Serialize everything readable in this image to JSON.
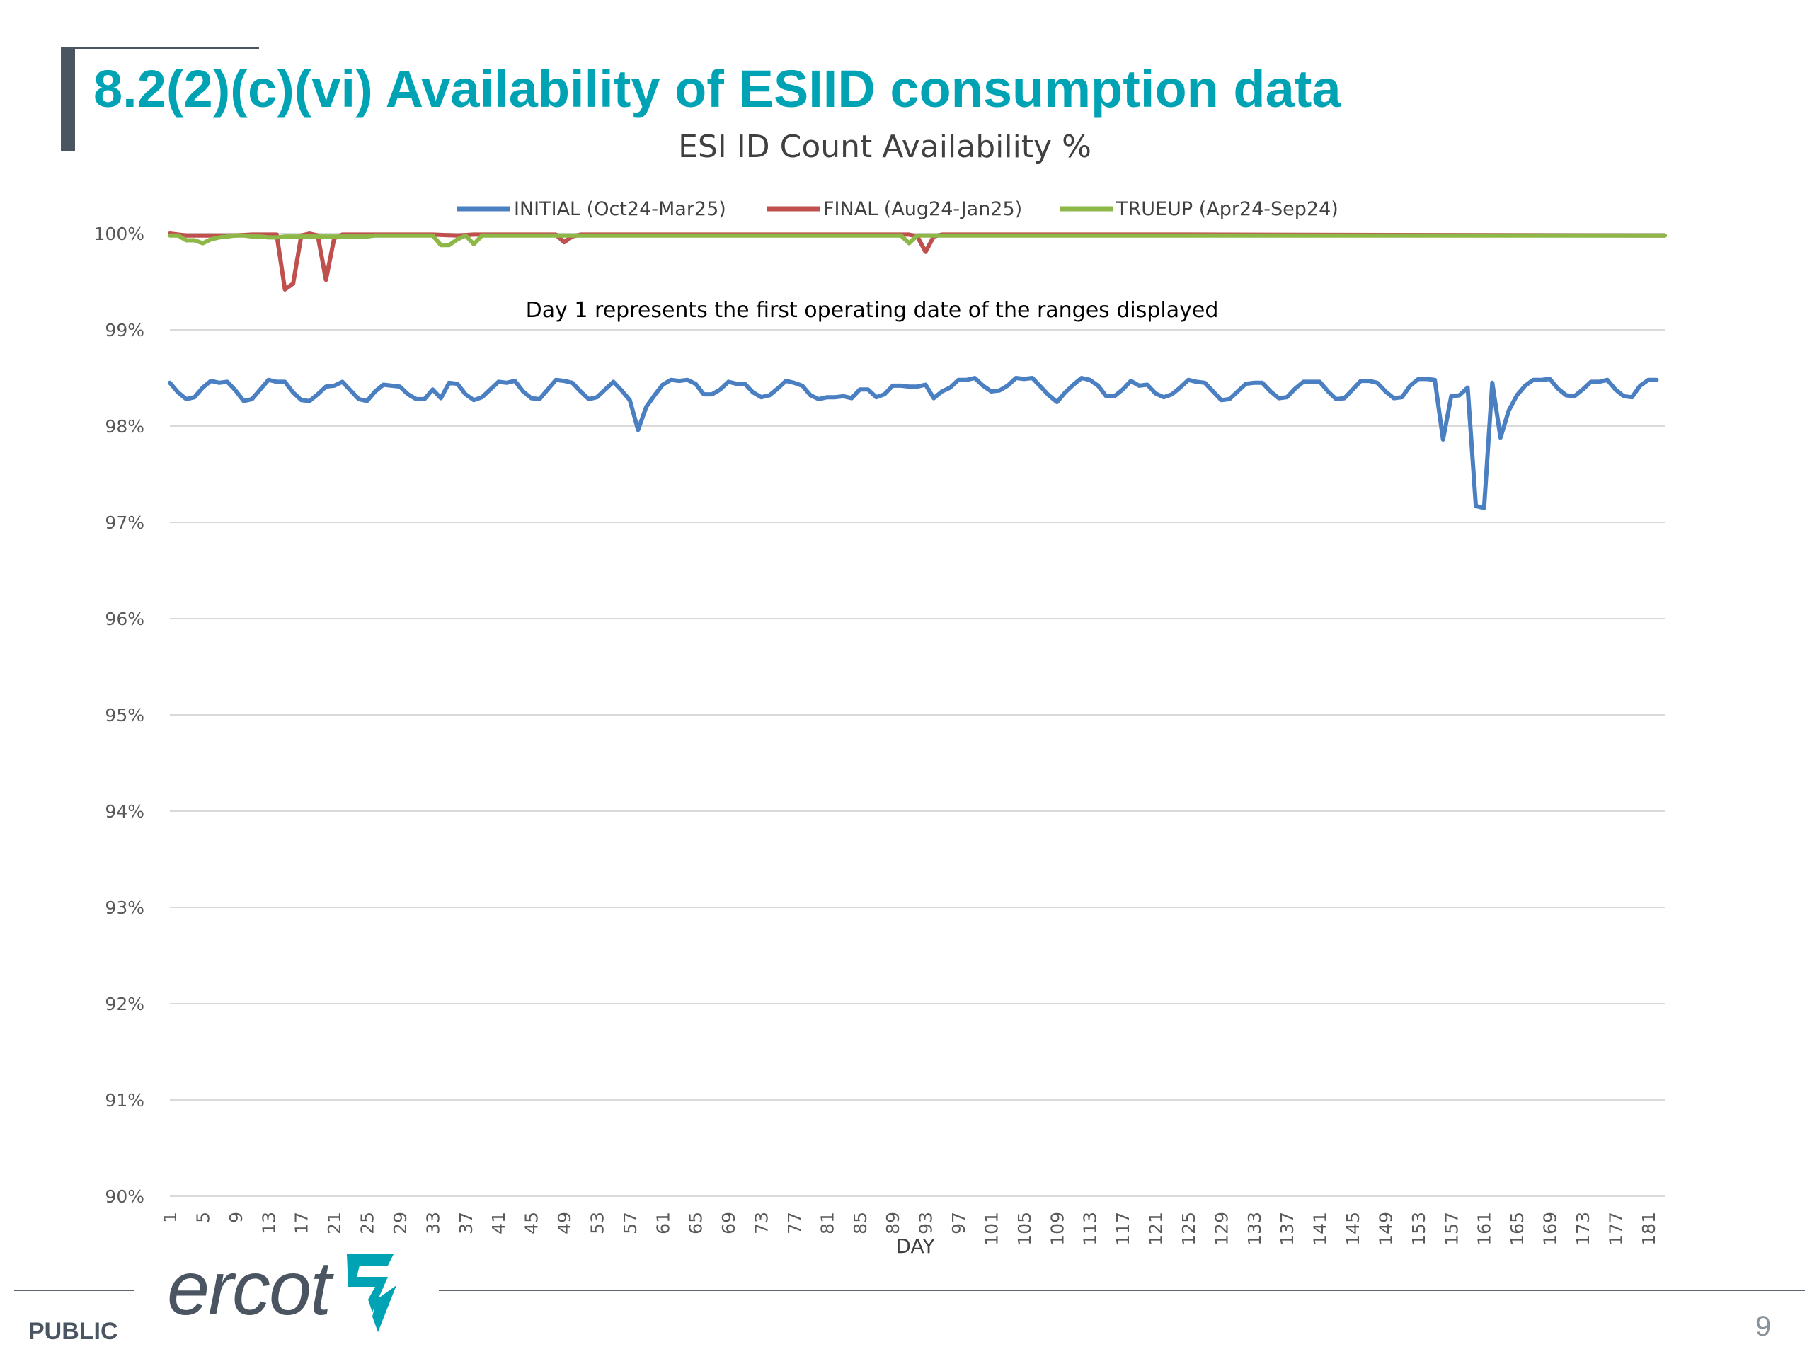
{
  "slide": {
    "title": "8.2(2)(c)(vi) Availability of ESIID consumption data",
    "footer_label": "PUBLIC",
    "page_number": "9",
    "logo_text": "ercot"
  },
  "colors": {
    "title": "#00a3b4",
    "dark_gray": "#4a5561",
    "initial": "#4a7fc1",
    "final": "#c0504d",
    "trueup": "#8db848",
    "gridline": "#d9d9d9"
  },
  "chart_data": {
    "type": "line",
    "title": "ESI ID Count Availability %",
    "annotation": "Day 1 represents the first operating date of the ranges displayed",
    "xlabel": "DAY",
    "ylabel": "",
    "ylim": [
      90,
      100
    ],
    "yticks": [
      "100%",
      "99%",
      "98%",
      "97%",
      "96%",
      "95%",
      "94%",
      "93%",
      "92%",
      "91%",
      "90%"
    ],
    "xticks": [
      "1",
      "5",
      "9",
      "13",
      "17",
      "21",
      "25",
      "29",
      "33",
      "37",
      "41",
      "45",
      "49",
      "53",
      "57",
      "61",
      "65",
      "69",
      "73",
      "77",
      "81",
      "85",
      "89",
      "93",
      "97",
      "101",
      "105",
      "109",
      "113",
      "117",
      "121",
      "125",
      "129",
      "133",
      "137",
      "141",
      "145",
      "149",
      "153",
      "157",
      "161",
      "165",
      "169",
      "173",
      "177",
      "181"
    ],
    "grid": true,
    "legend_position": "top",
    "series": [
      {
        "name": "INITIAL (Oct24-Mar25)",
        "points": [
          [
            1,
            98.45
          ],
          [
            2,
            98.35
          ],
          [
            3,
            98.28
          ],
          [
            4,
            98.3
          ],
          [
            5,
            98.4
          ],
          [
            6,
            98.47
          ],
          [
            7,
            98.45
          ],
          [
            8,
            98.46
          ],
          [
            9,
            98.37
          ],
          [
            10,
            98.26
          ],
          [
            11,
            98.28
          ],
          [
            12,
            98.38
          ],
          [
            13,
            98.48
          ],
          [
            14,
            98.46
          ],
          [
            15,
            98.46
          ],
          [
            16,
            98.35
          ],
          [
            17,
            98.27
          ],
          [
            18,
            98.26
          ],
          [
            19,
            98.33
          ],
          [
            20,
            98.41
          ],
          [
            21,
            98.42
          ],
          [
            22,
            98.46
          ],
          [
            23,
            98.37
          ],
          [
            24,
            98.28
          ],
          [
            25,
            98.26
          ],
          [
            26,
            98.36
          ],
          [
            27,
            98.43
          ],
          [
            28,
            98.42
          ],
          [
            29,
            98.41
          ],
          [
            30,
            98.33
          ],
          [
            31,
            98.28
          ],
          [
            32,
            98.28
          ],
          [
            33,
            98.38
          ],
          [
            34,
            98.29
          ],
          [
            35,
            98.45
          ],
          [
            36,
            98.44
          ],
          [
            37,
            98.33
          ],
          [
            38,
            98.27
          ],
          [
            39,
            98.3
          ],
          [
            40,
            98.38
          ],
          [
            41,
            98.46
          ],
          [
            42,
            98.45
          ],
          [
            43,
            98.47
          ],
          [
            44,
            98.36
          ],
          [
            45,
            98.29
          ],
          [
            46,
            98.28
          ],
          [
            47,
            98.38
          ],
          [
            48,
            98.48
          ],
          [
            49,
            98.47
          ],
          [
            50,
            98.45
          ],
          [
            51,
            98.36
          ],
          [
            52,
            98.28
          ],
          [
            53,
            98.3
          ],
          [
            54,
            98.38
          ],
          [
            55,
            98.46
          ],
          [
            56,
            98.37
          ],
          [
            57,
            98.27
          ],
          [
            58,
            97.96
          ],
          [
            59,
            98.2
          ],
          [
            60,
            98.32
          ],
          [
            61,
            98.43
          ],
          [
            62,
            98.48
          ],
          [
            63,
            98.47
          ],
          [
            64,
            98.48
          ],
          [
            65,
            98.44
          ],
          [
            66,
            98.33
          ],
          [
            67,
            98.33
          ],
          [
            68,
            98.38
          ],
          [
            69,
            98.46
          ],
          [
            70,
            98.44
          ],
          [
            71,
            98.44
          ],
          [
            72,
            98.35
          ],
          [
            73,
            98.3
          ],
          [
            74,
            98.32
          ],
          [
            75,
            98.39
          ],
          [
            76,
            98.47
          ],
          [
            77,
            98.45
          ],
          [
            78,
            98.42
          ],
          [
            79,
            98.32
          ],
          [
            80,
            98.28
          ],
          [
            81,
            98.3
          ],
          [
            82,
            98.3
          ],
          [
            83,
            98.31
          ],
          [
            84,
            98.29
          ],
          [
            85,
            98.38
          ],
          [
            86,
            98.38
          ],
          [
            87,
            98.3
          ],
          [
            88,
            98.33
          ],
          [
            89,
            98.42
          ],
          [
            90,
            98.42
          ],
          [
            91,
            98.41
          ],
          [
            92,
            98.41
          ],
          [
            93,
            98.43
          ],
          [
            94,
            98.29
          ],
          [
            95,
            98.36
          ],
          [
            96,
            98.4
          ],
          [
            97,
            98.48
          ],
          [
            98,
            98.48
          ],
          [
            99,
            98.5
          ],
          [
            100,
            98.42
          ],
          [
            101,
            98.36
          ],
          [
            102,
            98.37
          ],
          [
            103,
            98.42
          ],
          [
            104,
            98.5
          ],
          [
            105,
            98.49
          ],
          [
            106,
            98.5
          ],
          [
            107,
            98.41
          ],
          [
            108,
            98.32
          ],
          [
            109,
            98.25
          ],
          [
            110,
            98.35
          ],
          [
            111,
            98.43
          ],
          [
            112,
            98.5
          ],
          [
            113,
            98.48
          ],
          [
            114,
            98.42
          ],
          [
            115,
            98.31
          ],
          [
            116,
            98.31
          ],
          [
            117,
            98.38
          ],
          [
            118,
            98.47
          ],
          [
            119,
            98.42
          ],
          [
            120,
            98.43
          ],
          [
            121,
            98.34
          ],
          [
            122,
            98.3
          ],
          [
            123,
            98.33
          ],
          [
            124,
            98.4
          ],
          [
            125,
            98.48
          ],
          [
            126,
            98.46
          ],
          [
            127,
            98.45
          ],
          [
            128,
            98.36
          ],
          [
            129,
            98.27
          ],
          [
            130,
            98.28
          ],
          [
            131,
            98.36
          ],
          [
            132,
            98.44
          ],
          [
            133,
            98.45
          ],
          [
            134,
            98.45
          ],
          [
            135,
            98.36
          ],
          [
            136,
            98.29
          ],
          [
            137,
            98.3
          ],
          [
            138,
            98.39
          ],
          [
            139,
            98.46
          ],
          [
            140,
            98.46
          ],
          [
            141,
            98.46
          ],
          [
            142,
            98.36
          ],
          [
            143,
            98.28
          ],
          [
            144,
            98.29
          ],
          [
            145,
            98.38
          ],
          [
            146,
            98.47
          ],
          [
            147,
            98.47
          ],
          [
            148,
            98.45
          ],
          [
            149,
            98.36
          ],
          [
            150,
            98.29
          ],
          [
            151,
            98.3
          ],
          [
            152,
            98.42
          ],
          [
            153,
            98.49
          ],
          [
            154,
            98.49
          ],
          [
            155,
            98.48
          ],
          [
            156,
            97.86
          ],
          [
            157,
            98.31
          ],
          [
            158,
            98.32
          ],
          [
            159,
            98.4
          ],
          [
            160,
            97.17
          ],
          [
            161,
            97.15
          ],
          [
            162,
            98.45
          ],
          [
            163,
            97.88
          ],
          [
            164,
            98.16
          ],
          [
            165,
            98.32
          ],
          [
            166,
            98.42
          ],
          [
            167,
            98.48
          ],
          [
            168,
            98.48
          ],
          [
            169,
            98.49
          ],
          [
            170,
            98.39
          ],
          [
            171,
            98.32
          ],
          [
            172,
            98.31
          ],
          [
            173,
            98.38
          ],
          [
            174,
            98.46
          ],
          [
            175,
            98.46
          ],
          [
            176,
            98.48
          ],
          [
            177,
            98.38
          ],
          [
            178,
            98.31
          ],
          [
            179,
            98.3
          ],
          [
            180,
            98.42
          ],
          [
            181,
            98.48
          ],
          [
            182,
            98.48
          ]
        ]
      },
      {
        "name": "FINAL (Aug24-Jan25)",
        "points": [
          [
            1,
            100
          ],
          [
            3,
            99.98
          ],
          [
            5,
            99.98
          ],
          [
            7,
            99.98
          ],
          [
            9,
            99.98
          ],
          [
            11,
            99.99
          ],
          [
            13,
            99.99
          ],
          [
            14,
            99.99
          ],
          [
            15,
            99.42
          ],
          [
            16,
            99.48
          ],
          [
            17,
            99.98
          ],
          [
            18,
            100
          ],
          [
            19,
            99.98
          ],
          [
            20,
            99.52
          ],
          [
            21,
            99.95
          ],
          [
            22,
            99.99
          ],
          [
            30,
            99.99
          ],
          [
            33,
            99.99
          ],
          [
            36,
            99.98
          ],
          [
            38,
            99.99
          ],
          [
            40,
            99.99
          ],
          [
            48,
            99.99
          ],
          [
            49,
            99.91
          ],
          [
            50,
            99.97
          ],
          [
            51,
            99.99
          ],
          [
            91,
            99.99
          ],
          [
            92,
            99.97
          ],
          [
            93,
            99.81
          ],
          [
            94,
            99.97
          ],
          [
            95,
            99.99
          ],
          [
            125,
            99.99
          ],
          [
            183,
            99.98
          ]
        ]
      },
      {
        "name": "TRUEUP (Apr24-Sep24)",
        "points": [
          [
            1,
            99.98
          ],
          [
            2,
            99.98
          ],
          [
            3,
            99.93
          ],
          [
            4,
            99.93
          ],
          [
            5,
            99.9
          ],
          [
            6,
            99.94
          ],
          [
            7,
            99.96
          ],
          [
            8,
            99.97
          ],
          [
            9,
            99.98
          ],
          [
            10,
            99.98
          ],
          [
            11,
            99.97
          ],
          [
            12,
            99.97
          ],
          [
            13,
            99.96
          ],
          [
            14,
            99.96
          ],
          [
            15,
            99.97
          ],
          [
            16,
            99.97
          ],
          [
            17,
            99.97
          ],
          [
            25,
            99.97
          ],
          [
            26,
            99.98
          ],
          [
            33,
            99.98
          ],
          [
            34,
            99.88
          ],
          [
            35,
            99.88
          ],
          [
            36,
            99.94
          ],
          [
            37,
            99.98
          ],
          [
            38,
            99.89
          ],
          [
            39,
            99.98
          ],
          [
            40,
            99.98
          ],
          [
            89,
            99.98
          ],
          [
            90,
            99.98
          ],
          [
            91,
            99.9
          ],
          [
            92,
            99.98
          ],
          [
            183,
            99.98
          ]
        ]
      }
    ]
  }
}
